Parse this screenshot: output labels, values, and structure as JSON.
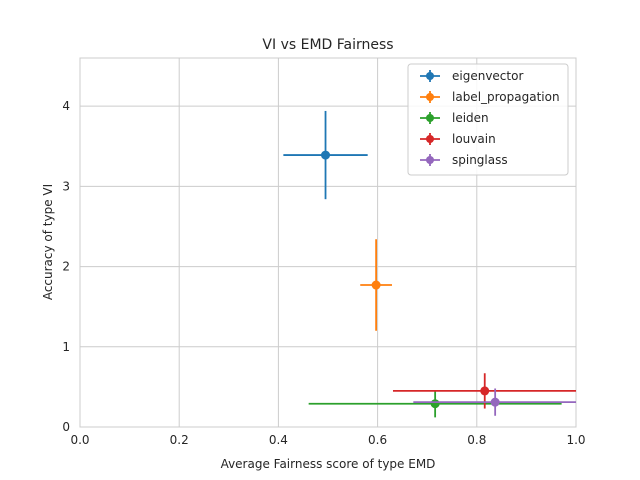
{
  "chart_data": {
    "type": "scatter",
    "title": "VI vs EMD Fairness",
    "xlabel": "Average Fairness score of type EMD",
    "ylabel": "Accuracy of type VI",
    "xlim": [
      0.0,
      1.0
    ],
    "ylim": [
      0.0,
      4.6
    ],
    "xticks": [
      0.0,
      0.2,
      0.4,
      0.6,
      0.8,
      1.0
    ],
    "xtick_labels": [
      "0.0",
      "0.2",
      "0.4",
      "0.6",
      "0.8",
      "1.0"
    ],
    "yticks": [
      0,
      1,
      2,
      3,
      4
    ],
    "ytick_labels": [
      "0",
      "1",
      "2",
      "3",
      "4"
    ],
    "grid": true,
    "legend_position": "top-right",
    "series": [
      {
        "name": "eigenvector",
        "color": "#1f77b4",
        "x": 0.495,
        "y": 3.39,
        "xerr": 0.085,
        "yerr": 0.55
      },
      {
        "name": "label_propagation",
        "color": "#ff7f0e",
        "x": 0.597,
        "y": 1.77,
        "xerr": 0.032,
        "yerr": 0.57
      },
      {
        "name": "leiden",
        "color": "#2ca02c",
        "x": 0.716,
        "y": 0.29,
        "xerr": 0.255,
        "yerr": 0.17
      },
      {
        "name": "louvain",
        "color": "#d62728",
        "x": 0.816,
        "y": 0.45,
        "xerr": 0.185,
        "yerr": 0.22
      },
      {
        "name": "spinglass",
        "color": "#9467bd",
        "x": 0.837,
        "y": 0.31,
        "xerr": 0.165,
        "yerr": 0.17
      }
    ]
  }
}
